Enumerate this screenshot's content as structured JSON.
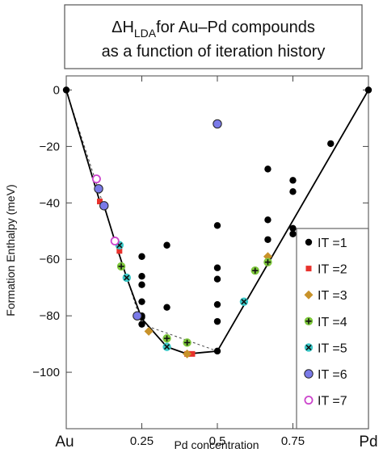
{
  "chart_data": {
    "type": "scatter",
    "title": {
      "line1_prefix": "ΔH",
      "line1_subscript": "LDA",
      "line1_suffix": "for Au–Pd compounds",
      "line2": "as a function of iteration history"
    },
    "xlabel": "Pd concentration",
    "ylabel": "Formation Enthalpy (meV)",
    "x_end_labels": {
      "left": "Au",
      "right": "Pd"
    },
    "xlim": [
      0,
      1
    ],
    "ylim": [
      -120,
      5
    ],
    "x_ticks": [
      {
        "value": 0.25,
        "label": "0.25"
      },
      {
        "value": 0.5,
        "label": "0.5"
      },
      {
        "value": 0.75,
        "label": "0.75"
      }
    ],
    "y_ticks": [
      {
        "value": 0,
        "label": "0"
      },
      {
        "value": -20,
        "label": "−20"
      },
      {
        "value": -40,
        "label": "−40"
      },
      {
        "value": -60,
        "label": "−60"
      },
      {
        "value": -80,
        "label": "−80"
      },
      {
        "value": -100,
        "label": "−100"
      }
    ],
    "legend_position": "right",
    "series": [
      {
        "name": "IT =1",
        "marker": "circle-filled",
        "color": "#000000",
        "points": [
          [
            0,
            0
          ],
          [
            1,
            0
          ],
          [
            0.25,
            -59
          ],
          [
            0.25,
            -66
          ],
          [
            0.25,
            -69
          ],
          [
            0.25,
            -75
          ],
          [
            0.25,
            -80
          ],
          [
            0.25,
            -83
          ],
          [
            0.333,
            -55
          ],
          [
            0.333,
            -77
          ],
          [
            0.5,
            -48
          ],
          [
            0.5,
            -63
          ],
          [
            0.5,
            -67
          ],
          [
            0.5,
            -76
          ],
          [
            0.5,
            -82
          ],
          [
            0.5,
            -92.5
          ],
          [
            0.667,
            -28
          ],
          [
            0.667,
            -46
          ],
          [
            0.667,
            -53
          ],
          [
            0.75,
            -32
          ],
          [
            0.75,
            -36
          ],
          [
            0.75,
            -49
          ],
          [
            0.75,
            -51
          ],
          [
            0.875,
            -19
          ],
          [
            0.25,
            -80.5
          ]
        ]
      },
      {
        "name": "IT =2",
        "marker": "square",
        "color": "#e8322c",
        "points": [
          [
            0.111,
            -39.5
          ],
          [
            0.176,
            -57
          ],
          [
            0.4,
            -93.5
          ],
          [
            0.417,
            -93.5
          ]
        ]
      },
      {
        "name": "IT =3",
        "marker": "diamond",
        "color": "#c8922a",
        "points": [
          [
            0.273,
            -85.5
          ],
          [
            0.4,
            -93.5
          ],
          [
            0.667,
            -59
          ]
        ]
      },
      {
        "name": "IT =4",
        "marker": "plus-circle",
        "color": "#7ec83c",
        "points": [
          [
            0.182,
            -62.5
          ],
          [
            0.333,
            -88
          ],
          [
            0.4,
            -89.5
          ],
          [
            0.625,
            -64
          ],
          [
            0.667,
            -61
          ]
        ]
      },
      {
        "name": "IT =5",
        "marker": "x-circle",
        "color": "#38c8c8",
        "points": [
          [
            0.176,
            -55
          ],
          [
            0.2,
            -66.5
          ],
          [
            0.333,
            -91
          ],
          [
            0.588,
            -75
          ]
        ]
      },
      {
        "name": "IT =6",
        "marker": "circle",
        "color": "#7a7ae8",
        "points": [
          [
            0.107,
            -35
          ],
          [
            0.125,
            -41
          ],
          [
            0.235,
            -80
          ],
          [
            0.5,
            -12
          ]
        ]
      },
      {
        "name": "IT =7",
        "marker": "circle-open",
        "color": "#cc44cc",
        "points": [
          [
            0.1,
            -31.5
          ],
          [
            0.161,
            -53.5
          ]
        ]
      }
    ],
    "convex_hull": [
      [
        0,
        0
      ],
      [
        0.111,
        -39.5
      ],
      [
        0.125,
        -41
      ],
      [
        0.161,
        -53.5
      ],
      [
        0.2,
        -66.5
      ],
      [
        0.25,
        -81
      ],
      [
        0.333,
        -91
      ],
      [
        0.4,
        -93.5
      ],
      [
        0.5,
        -92.5
      ],
      [
        1,
        0
      ]
    ],
    "previous_hull_dashed": [
      [
        0,
        0
      ],
      [
        0.25,
        -83
      ],
      [
        0.5,
        -92.5
      ]
    ]
  }
}
